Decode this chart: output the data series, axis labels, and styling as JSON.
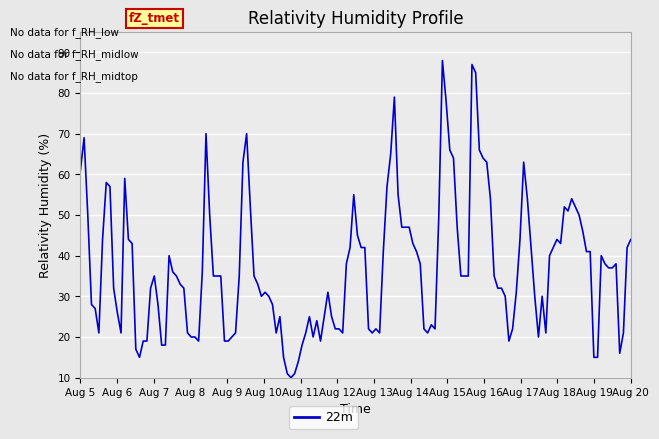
{
  "title": "Relativity Humidity Profile",
  "xlabel": "Time",
  "ylabel": "Relativity Humidity (%)",
  "ylim": [
    10,
    95
  ],
  "yticks": [
    10,
    20,
    30,
    40,
    50,
    60,
    70,
    80,
    90
  ],
  "background_color": "#e8e8e8",
  "plot_bg_color": "#ebebeb",
  "line_color": "#0000cc",
  "line_width": 1.2,
  "legend_label": "22m",
  "annotations": [
    "No data for f_RH_low",
    "No data for f_RH_midlow",
    "No data for f_RH_midtop"
  ],
  "legend_box_text": "fZ_tmet",
  "legend_box_color": "#cc0000",
  "legend_box_bg": "#ffff99",
  "x_tick_labels": [
    "Aug 5",
    "Aug 6",
    "Aug 7",
    "Aug 8",
    "Aug 9",
    "Aug 10",
    "Aug 11",
    "Aug 12",
    "Aug 13",
    "Aug 14",
    "Aug 15",
    "Aug 16",
    "Aug 17",
    "Aug 18",
    "Aug 19",
    "Aug 20"
  ],
  "x_tick_positions": [
    0,
    24,
    48,
    72,
    96,
    120,
    144,
    168,
    192,
    216,
    240,
    264,
    288,
    312,
    336,
    360
  ],
  "data_22m": [
    61,
    69,
    50,
    28,
    27,
    21,
    44,
    58,
    57,
    32,
    26,
    21,
    59,
    44,
    43,
    17,
    15,
    19,
    19,
    32,
    35,
    28,
    18,
    18,
    40,
    36,
    35,
    33,
    32,
    21,
    20,
    20,
    19,
    36,
    70,
    50,
    35,
    35,
    35,
    19,
    19,
    20,
    21,
    35,
    63,
    70,
    52,
    35,
    33,
    30,
    31,
    30,
    28,
    21,
    25,
    15,
    11,
    10,
    11,
    14,
    18,
    21,
    25,
    20,
    24,
    19,
    25,
    31,
    25,
    22,
    22,
    21,
    38,
    42,
    55,
    45,
    42,
    42,
    22,
    21,
    22,
    21,
    41,
    57,
    65,
    79,
    55,
    47,
    47,
    47,
    43,
    41,
    38,
    22,
    21,
    23,
    22,
    49,
    88,
    78,
    66,
    64,
    47,
    35,
    35,
    35,
    87,
    85,
    66,
    64,
    63,
    54,
    35,
    32,
    32,
    30,
    19,
    22,
    31,
    44,
    63,
    54,
    42,
    30,
    20,
    30,
    21,
    40,
    42,
    44,
    43,
    52,
    51,
    54,
    52,
    50,
    46,
    41,
    41,
    15,
    15,
    40,
    38,
    37,
    37,
    38,
    16,
    21,
    42,
    44
  ]
}
